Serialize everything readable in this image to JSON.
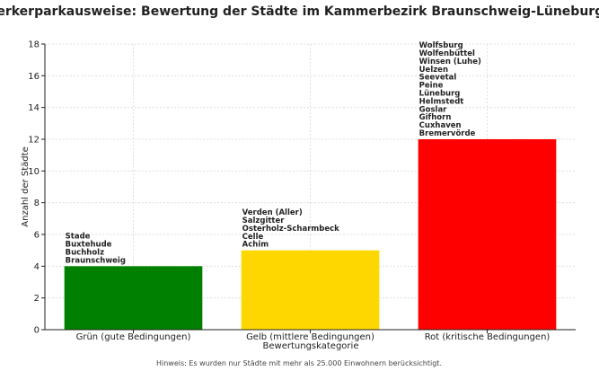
{
  "chart_data": {
    "type": "bar",
    "title": "Handwerkerparkausweise: Bewertung der Städte im Kammerbezirk Braunschweig-Lüneburg-Stade",
    "xlabel": "Bewertungskategorie",
    "ylabel": "Anzahl der Städte",
    "ylim": [
      0,
      18
    ],
    "yticks": [
      0,
      2,
      4,
      6,
      8,
      10,
      12,
      14,
      16,
      18
    ],
    "grid": true,
    "categories": [
      "Grün (gute Bedingungen)",
      "Gelb (mittlere Bedingungen)",
      "Rot (kritische Bedingungen)"
    ],
    "values": [
      4,
      5,
      12
    ],
    "colors": [
      "#008000",
      "#FFD700",
      "#FF0000"
    ],
    "bar_annotations": [
      [
        "Stade",
        "Buxtehude",
        "Buchholz",
        "Braunschweig"
      ],
      [
        "Verden (Aller)",
        "Salzgitter",
        "Osterholz-Scharmbeck",
        "Celle",
        "Achim"
      ],
      [
        "Wolfsburg",
        "Wolfenbüttel",
        "Winsen (Luhe)",
        "Uelzen",
        "Seevetal",
        "Peine",
        "Lüneburg",
        "Helmstedt",
        "Goslar",
        "Gifhorn",
        "Cuxhaven",
        "Bremervörde"
      ]
    ],
    "footnote": "Hinweis: Es wurden nur Städte mit mehr als 25.000 Einwohnern berücksichtigt."
  }
}
